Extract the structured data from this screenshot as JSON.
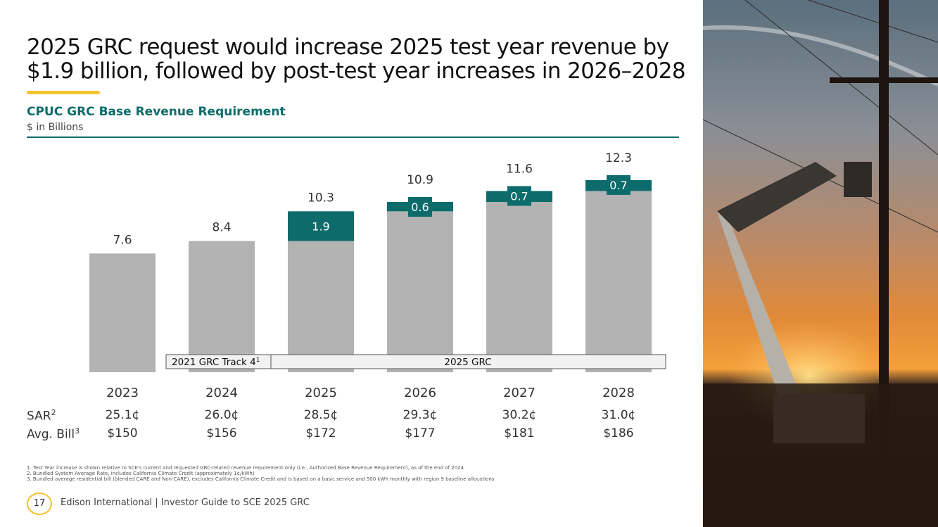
{
  "slide": {
    "title_line1": "2025 GRC request would increase 2025 test year revenue by",
    "title_line2": "$1.9 billion, followed by post-test year increases in 2026–2028",
    "subtitle": "CPUC GRC Base Revenue Requirement",
    "units": "$ in Billions"
  },
  "chart_data": {
    "type": "bar",
    "stacked": true,
    "title": "CPUC GRC Base Revenue Requirement",
    "ylabel": "$ in Billions",
    "categories": [
      "2023",
      "2024",
      "2025",
      "2026",
      "2027",
      "2028"
    ],
    "series": [
      {
        "name": "Base",
        "values": [
          7.6,
          8.4,
          8.4,
          10.3,
          10.9,
          11.6
        ],
        "color": "#b3b3b3"
      },
      {
        "name": "Increase",
        "values": [
          0,
          0,
          1.9,
          0.6,
          0.7,
          0.7
        ],
        "color": "#0e6b6b"
      }
    ],
    "totals": [
      "7.6",
      "8.4",
      "10.3",
      "10.9",
      "11.6",
      "12.3"
    ],
    "increase_labels": [
      "",
      "",
      "1.9",
      "0.6",
      "0.7",
      "0.7"
    ],
    "ylim": [
      0,
      13
    ],
    "brackets": [
      {
        "label": "2021 GRC Track 4",
        "sup": "1",
        "from": "2024",
        "to": "2024"
      },
      {
        "label": "2025 GRC",
        "sup": "",
        "from": "2025",
        "to": "2028"
      }
    ]
  },
  "table": {
    "sar_label": "SAR",
    "sar_sup": "2",
    "bill_label": "Avg. Bill",
    "bill_sup": "3",
    "sar": [
      "25.1¢",
      "26.0¢",
      "28.5¢",
      "29.3¢",
      "30.2¢",
      "31.0¢"
    ],
    "bill": [
      "$150",
      "$156",
      "$172",
      "$177",
      "$181",
      "$186"
    ]
  },
  "footnotes": [
    "1.   Test Year increase is shown relative to SCE's current and requested GRC-related revenue requirement only (i.e., Authorized Base Revenue Requirement), as of the end of 2024",
    "2.   Bundled System Average Rate, includes California Climate Credit (approximately 1¢/kWh)",
    "3.   Bundled average residential bill (blended CARE and Non-CARE), excludes California Climate Credit and is based on a basic service and 500 kWh monthly with region 9 baseline allocations"
  ],
  "footer": {
    "page_number": "17",
    "text": "Edison International | Investor Guide to SCE 2025 GRC"
  }
}
